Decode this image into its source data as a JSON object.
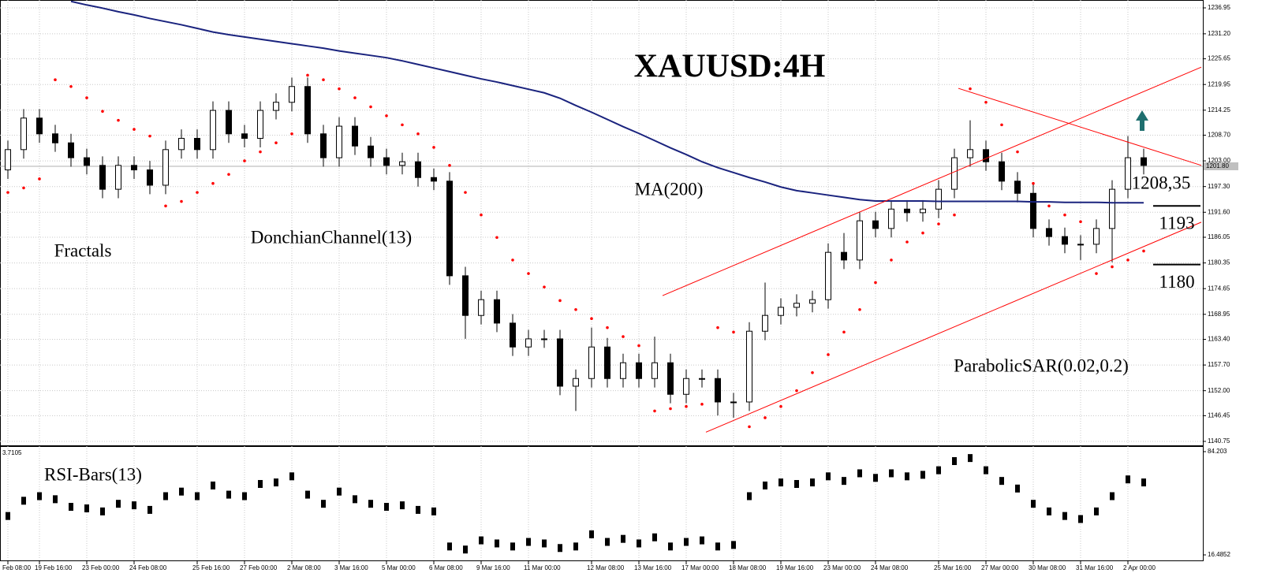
{
  "chart_data": {
    "type": "candlestick",
    "title": "XAUUSD:4H",
    "categories": [
      "Feb 08:00",
      null,
      "19 Feb 16:00",
      null,
      null,
      "23 Feb 00:00",
      null,
      null,
      "24 Feb 08:00",
      null,
      null,
      null,
      "25 Feb 16:00",
      null,
      null,
      "27 Feb 00:00",
      null,
      null,
      "2 Mar 08:00",
      null,
      null,
      "3 Mar 16:00",
      null,
      null,
      "5 Mar 00:00",
      null,
      null,
      "6 Mar 08:00",
      null,
      null,
      "9 Mar 16:00",
      null,
      null,
      "11 Mar 00:00",
      null,
      null,
      null,
      "12 Mar 08:00",
      null,
      null,
      "13 Mar 16:00",
      null,
      null,
      "17 Mar 00:00",
      null,
      null,
      "18 Mar 08:00",
      null,
      null,
      "19 Mar 16:00",
      null,
      null,
      "23 Mar 00:00",
      null,
      null,
      "24 Mar 08:00",
      null,
      null,
      null,
      "25 Mar 16:00",
      null,
      null,
      "27 Mar 00:00",
      null,
      null,
      "30 Mar 08:00",
      null,
      null,
      "31 Mar 16:00",
      null,
      null,
      "2 Apr 00:00",
      null
    ],
    "open": [
      1201,
      1205.5,
      1212.5,
      1209,
      1207,
      1203.7,
      1202,
      1196.7,
      1202,
      1201,
      1197.6,
      1205.5,
      1208,
      1205.5,
      1214.2,
      1209,
      1208,
      1214.2,
      1216,
      1219.5,
      1209,
      1203.7,
      1210.7,
      1206.3,
      1203.7,
      1202,
      1202.8,
      1199.3,
      1198.5,
      1177.5,
      1168.7,
      1172.2,
      1167,
      1161.7,
      1163.5,
      1163.5,
      1153,
      1154.7,
      1161.7,
      1154.7,
      1158.2,
      1154.7,
      1158.2,
      1151.2,
      1154.7,
      1154.7,
      1149.5,
      1149.5,
      1165.2,
      1168.7,
      1170.5,
      1171.4,
      1172.2,
      1182.7,
      1181,
      1189.7,
      1188,
      1192.3,
      1191.5,
      1192.3,
      1196.7,
      1203.7,
      1205.5,
      1202.8,
      1198.5,
      1195.8,
      1188,
      1186.2,
      1184.5,
      1184.5,
      1188,
      1196.7,
      1203.7
    ],
    "high": [
      1207.5,
      1214.5,
      1214.5,
      1211,
      1209,
      1205.7,
      1204,
      1204,
      1204,
      1203,
      1207.5,
      1210,
      1210,
      1216.2,
      1216.2,
      1211,
      1216.2,
      1218,
      1221.5,
      1221.5,
      1211,
      1212.7,
      1212.7,
      1208.3,
      1205.7,
      1204.8,
      1204.8,
      1201.3,
      1200.5,
      1179.5,
      1174.2,
      1174.2,
      1169,
      1165.5,
      1165.5,
      1165.5,
      1156.7,
      1166,
      1163.7,
      1160.2,
      1160.2,
      1164,
      1160.2,
      1156.7,
      1156.7,
      1156.7,
      1151.5,
      1167.2,
      1176,
      1172.5,
      1173.4,
      1174.2,
      1184.7,
      1187,
      1191.7,
      1191.7,
      1194.3,
      1194.3,
      1194.3,
      1198.7,
      1205.7,
      1212,
      1207.5,
      1204.8,
      1200.5,
      1197.8,
      1190,
      1188.2,
      1186.5,
      1190,
      1198.7,
      1208.5,
      1205.7
    ],
    "low": [
      1199,
      1203.5,
      1207,
      1205,
      1201.7,
      1200,
      1194.7,
      1194.7,
      1199,
      1195.6,
      1195.6,
      1203.5,
      1203.5,
      1203.5,
      1207,
      1206,
      1206,
      1212.2,
      1214,
      1207,
      1201.7,
      1201.7,
      1204.3,
      1201.7,
      1200,
      1200,
      1197.3,
      1196.5,
      1175.5,
      1163.5,
      1166.7,
      1165,
      1159.7,
      1159.7,
      1161.5,
      1151,
      1147.5,
      1152.7,
      1152.7,
      1152.7,
      1152.7,
      1152.7,
      1149.2,
      1149.2,
      1152.7,
      1146.5,
      1146,
      1147.5,
      1163.2,
      1166.7,
      1168.5,
      1169.4,
      1170.2,
      1179,
      1179,
      1186,
      1186,
      1189.5,
      1189.5,
      1190.3,
      1194.7,
      1201.7,
      1200.8,
      1196.5,
      1193.8,
      1186,
      1184.2,
      1182.5,
      1181,
      1182.5,
      1180.5,
      1194.7,
      1200
    ],
    "close": [
      1205.5,
      1212.5,
      1209,
      1207,
      1203.7,
      1202,
      1196.7,
      1202,
      1201,
      1197.6,
      1205.5,
      1208,
      1205.5,
      1214.2,
      1209,
      1208,
      1214.2,
      1216,
      1219.5,
      1209,
      1203.7,
      1210.7,
      1206.3,
      1203.7,
      1202,
      1202.8,
      1199.3,
      1198.5,
      1177.5,
      1168.7,
      1172.2,
      1167,
      1161.7,
      1163.5,
      1163.5,
      1153,
      1154.7,
      1161.7,
      1154.7,
      1158.2,
      1154.7,
      1158.2,
      1151.2,
      1154.7,
      1154.7,
      1149.5,
      1149.5,
      1165.2,
      1168.7,
      1170.5,
      1171.4,
      1172.2,
      1182.7,
      1181,
      1189.7,
      1188,
      1192.3,
      1191.5,
      1192.3,
      1196.7,
      1203.7,
      1205.5,
      1202.8,
      1198.5,
      1195.8,
      1188,
      1186.2,
      1184.5,
      1184.5,
      1188,
      1196.7,
      1203.7,
      1202
    ],
    "up_color": "#ffffff",
    "down_color": "#000000",
    "ylim": [
      1139.7,
      1238.7
    ],
    "yticks": [
      1236.95,
      {
        "value": 1231.2,
        "label": "1231.20"
      },
      1225.65,
      1219.95,
      1214.25,
      {
        "value": 1208.7,
        "label": "1208.70"
      },
      {
        "value": 1203,
        "label": "1203.00"
      },
      {
        "value": 1197.3,
        "label": "1197.30"
      },
      {
        "value": 1191.6,
        "label": "1191.60"
      },
      1186.05,
      1180.35,
      1174.65,
      1168.95,
      {
        "value": 1163.4,
        "label": "1163.40"
      },
      {
        "value": 1157.7,
        "label": "1157.70"
      },
      {
        "value": 1152,
        "label": "1152.00"
      },
      1146.45,
      1140.75
    ],
    "grid": true,
    "series": [
      {
        "name": "MA(200)",
        "color": "#1a237e",
        "style": "line",
        "values": [
          null,
          null,
          null,
          null,
          1238.4,
          1237.6,
          1236.9,
          1236.1,
          1235.4,
          1234.6,
          1233.9,
          1233.2,
          1232.4,
          1231.6,
          1231.0,
          1230.5,
          1230,
          1229.5,
          1229,
          1228.5,
          1228,
          1227.4,
          1226.9,
          1226.4,
          1225.9,
          1225.2,
          1224.4,
          1223.6,
          1222.8,
          1222.0,
          1221.2,
          1220.5,
          1219.7,
          1218.9,
          1218.1,
          1216.9,
          1215.3,
          1213.8,
          1212.2,
          1210.6,
          1209.1,
          1207.5,
          1205.9,
          1204.4,
          1202.8,
          1201.5,
          1200.4,
          1199.3,
          1198.3,
          1197.2,
          1196.4,
          1195.9,
          1195.4,
          1194.9,
          1194.4,
          1194.1,
          1194.1,
          1194.1,
          1194.1,
          1194,
          1194,
          1194,
          1194,
          1194,
          1194,
          1193.9,
          1193.9,
          1193.8,
          1193.8,
          1193.8,
          1193.7,
          1193.7,
          1193.7
        ]
      },
      {
        "name": "ParabolicSAR(0.02,0.2)",
        "color": "#ff0000",
        "style": "dots",
        "values": [
          1196,
          1197,
          1199,
          1221,
          1219.5,
          1217,
          1214,
          1212,
          1210,
          1208.5,
          1193,
          1194,
          1196,
          1198,
          1200,
          1203,
          1205,
          1207,
          1209,
          1222,
          1221,
          1219,
          1217,
          1215,
          1213,
          1211,
          1209,
          1206,
          1202,
          1196,
          1191,
          1186,
          1181,
          1178,
          1175,
          1172,
          1170,
          1168,
          1166,
          1164,
          1162,
          1147.5,
          1148,
          1148.5,
          1149,
          1166,
          1165,
          1144,
          1146,
          1148.5,
          1152,
          1156,
          1160,
          1165,
          1170,
          1176,
          1181,
          1185,
          1187,
          1189,
          1191,
          1219,
          1216,
          1211,
          1205,
          1198,
          1193,
          1191,
          1189.5,
          1178,
          1179.5,
          1181,
          1183
        ]
      }
    ],
    "trendlines": [
      {
        "x": [
          41.5,
          75.65
        ],
        "y": [
          1173.1,
          1223.8
        ],
        "color": "#ff0000"
      },
      {
        "x": [
          44.25,
          75.65
        ],
        "y": [
          1142.8,
          1189.4
        ],
        "color": "#ff0000"
      },
      {
        "x": [
          60.25,
          75.65
        ],
        "y": [
          1219.1,
          1202
        ],
        "color": "#ff0000"
      }
    ],
    "levels": [
      {
        "value": 1193,
        "label": "1193"
      },
      {
        "value": 1180,
        "label": "1180"
      }
    ],
    "target_label": "1208,35",
    "last_price": {
      "value": 1201.8,
      "label": "1201.80"
    },
    "annotations": [
      "Fractals",
      "DonchianChannel(13)"
    ],
    "rsi": {
      "name": "RSI-Bars(13)",
      "corner_label": "3.7105",
      "values": [
        42,
        52,
        55,
        53,
        48,
        47,
        45,
        50,
        49,
        46,
        55,
        58,
        55,
        62,
        56,
        55,
        63,
        64,
        68,
        56,
        50,
        58,
        53,
        50,
        48,
        49,
        46,
        45,
        22,
        20,
        26,
        24,
        22,
        25,
        24,
        21,
        22,
        30,
        25,
        27,
        24,
        28,
        22,
        25,
        26,
        22,
        23,
        55,
        62,
        64,
        63,
        64,
        68,
        65,
        70,
        67,
        70,
        68,
        69,
        72,
        78,
        80,
        72,
        65,
        60,
        50,
        45,
        42,
        40,
        45,
        55,
        66,
        64
      ],
      "ylim": [
        12.35,
        87.82
      ],
      "yticks": [
        84.203,
        16.4852
      ]
    }
  }
}
